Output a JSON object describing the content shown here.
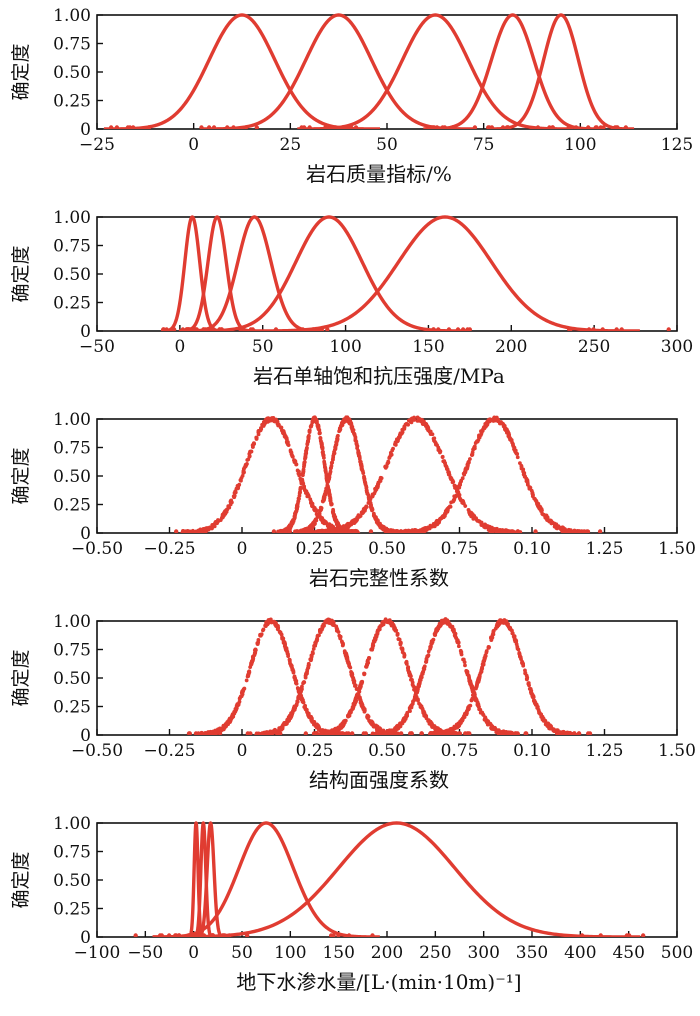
{
  "y_axis_label": "确定度",
  "chart_data": [
    {
      "type": "line",
      "xlabel": "岩石质量指标/%",
      "ylabel": "确定度",
      "xlim": [
        -25,
        125
      ],
      "ylim": [
        0,
        1
      ],
      "xticks": [
        "−25",
        "0",
        "25",
        "50",
        "75",
        "100",
        "125"
      ],
      "yticks": [
        "0",
        "0.25",
        "0.50",
        "0.75",
        "1.00"
      ],
      "color": "#e03c31",
      "series": [
        {
          "peak_x": 12.5,
          "spread": 8.5,
          "tail_min": -17,
          "tail_max": 42
        },
        {
          "peak_x": 37.5,
          "spread": 8.5,
          "tail_min": 4,
          "tail_max": 67
        },
        {
          "peak_x": 62.5,
          "spread": 8.5,
          "tail_min": 30,
          "tail_max": 92
        },
        {
          "peak_x": 82.5,
          "spread": 5.5,
          "tail_min": 62,
          "tail_max": 104
        },
        {
          "peak_x": 95,
          "spread": 4.5,
          "tail_min": 80,
          "tail_max": 109
        }
      ]
    },
    {
      "type": "line",
      "xlabel": "岩石单轴饱和抗压强度/MPa",
      "ylabel": "确定度",
      "xlim": [
        -50,
        300
      ],
      "ylim": [
        0,
        1
      ],
      "xticks": [
        "−50",
        "0",
        "50",
        "100",
        "150",
        "200",
        "250",
        "300"
      ],
      "yticks": [
        "0",
        "0.25",
        "0.50",
        "0.75",
        "1.00"
      ],
      "color": "#e03c31",
      "series": [
        {
          "peak_x": 7.5,
          "spread": 4.5,
          "tail_min": -8,
          "tail_max": 24
        },
        {
          "peak_x": 22.5,
          "spread": 5.5,
          "tail_min": 4,
          "tail_max": 44
        },
        {
          "peak_x": 45,
          "spread": 10,
          "tail_min": 5,
          "tail_max": 85
        },
        {
          "peak_x": 90,
          "spread": 20,
          "tail_min": 20,
          "tail_max": 175
        },
        {
          "peak_x": 160,
          "spread": 28,
          "tail_min": 58,
          "tail_max": 295
        }
      ]
    },
    {
      "type": "scatter",
      "xlabel": "岩石完整性系数",
      "ylabel": "确定度",
      "xlim": [
        -0.5,
        1.5
      ],
      "ylim": [
        0,
        1
      ],
      "xticks": [
        "−0.50",
        "−0.25",
        "0",
        "0.25",
        "0.50",
        "0.75",
        "0.10",
        "1.25",
        "1.50"
      ],
      "yticks": [
        "0",
        "0.25",
        "0.50",
        "0.75",
        "1.00"
      ],
      "color": "#e03c31",
      "series": [
        {
          "peak_x": 0.1,
          "spread": 0.085,
          "tail_min": -0.15,
          "tail_max": 0.38
        },
        {
          "peak_x": 0.25,
          "spread": 0.035,
          "tail_min": 0.15,
          "tail_max": 0.36
        },
        {
          "peak_x": 0.36,
          "spread": 0.05,
          "tail_min": 0.2,
          "tail_max": 0.5
        },
        {
          "peak_x": 0.6,
          "spread": 0.1,
          "tail_min": 0.27,
          "tail_max": 0.93
        },
        {
          "peak_x": 0.87,
          "spread": 0.09,
          "tail_min": 0.56,
          "tail_max": 1.18
        }
      ]
    },
    {
      "type": "scatter",
      "xlabel": "结构面强度系数",
      "ylabel": "确定度",
      "xlim": [
        -0.5,
        1.5
      ],
      "ylim": [
        0,
        1
      ],
      "xticks": [
        "−0.50",
        "−0.25",
        "0",
        "0.25",
        "0.50",
        "0.75",
        "0.10",
        "1.25",
        "1.50"
      ],
      "yticks": [
        "0",
        "0.25",
        "0.50",
        "0.75",
        "1.00"
      ],
      "color": "#e03c31",
      "series": [
        {
          "peak_x": 0.1,
          "spread": 0.07,
          "tail_min": -0.18,
          "tail_max": 0.38
        },
        {
          "peak_x": 0.3,
          "spread": 0.07,
          "tail_min": 0.02,
          "tail_max": 0.58
        },
        {
          "peak_x": 0.5,
          "spread": 0.07,
          "tail_min": 0.22,
          "tail_max": 0.78
        },
        {
          "peak_x": 0.7,
          "spread": 0.07,
          "tail_min": 0.42,
          "tail_max": 0.98
        },
        {
          "peak_x": 0.9,
          "spread": 0.07,
          "tail_min": 0.62,
          "tail_max": 1.2
        }
      ]
    },
    {
      "type": "line",
      "xlabel": "地下水渗水量/[L·(min·10m)⁻¹]",
      "ylabel": "确定度",
      "xlim": [
        -100,
        500
      ],
      "ylim": [
        0,
        1
      ],
      "xticks": [
        "−100",
        "−50",
        "0",
        "50",
        "100",
        "150",
        "200",
        "250",
        "300",
        "350",
        "400",
        "450",
        "500"
      ],
      "yticks": [
        "0",
        "0.25",
        "0.50",
        "0.75",
        "1.00"
      ],
      "color": "#e03c31",
      "series": [
        {
          "peak_x": 2.5,
          "spread": 2,
          "tail_min": -4,
          "tail_max": 9
        },
        {
          "peak_x": 10,
          "spread": 2.5,
          "tail_min": 1,
          "tail_max": 19
        },
        {
          "peak_x": 17.5,
          "spread": 3.5,
          "tail_min": 5,
          "tail_max": 30
        },
        {
          "peak_x": 75,
          "spread": 28,
          "tail_min": -60,
          "tail_max": 185
        },
        {
          "peak_x": 210,
          "spread": 60,
          "tail_min": -15,
          "tail_max": 465
        }
      ]
    }
  ]
}
